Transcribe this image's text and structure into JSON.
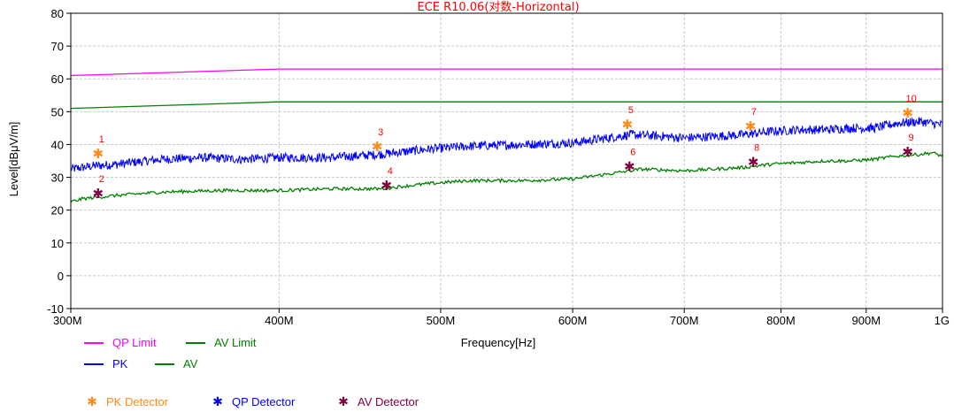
{
  "chart_data": {
    "type": "line",
    "title": "ECE R10.06(对数-Horizontal)",
    "xlabel": "Frequency[Hz]",
    "ylabel": "Level[dBμV/m]",
    "x_scale": "log",
    "xlim": [
      300000000,
      1000000000
    ],
    "ylim": [
      -10,
      80
    ],
    "grid": true,
    "x_ticks": [
      {
        "value": 300000000,
        "label": "300M"
      },
      {
        "value": 400000000,
        "label": "400M"
      },
      {
        "value": 500000000,
        "label": "500M"
      },
      {
        "value": 600000000,
        "label": "600M"
      },
      {
        "value": 700000000,
        "label": "700M"
      },
      {
        "value": 800000000,
        "label": "800M"
      },
      {
        "value": 900000000,
        "label": "900M"
      },
      {
        "value": 1000000000,
        "label": "1G"
      }
    ],
    "y_ticks": [
      -10,
      0,
      10,
      20,
      30,
      40,
      50,
      60,
      70,
      80
    ],
    "series": [
      {
        "name": "QP Limit",
        "color": "#ff00ff",
        "style": "line",
        "x": [
          300000000,
          400000000,
          1000000000
        ],
        "y": [
          61,
          63,
          63
        ]
      },
      {
        "name": "AV Limit",
        "color": "#008000",
        "style": "line",
        "x": [
          300000000,
          400000000,
          1000000000
        ],
        "y": [
          51,
          53,
          53
        ]
      },
      {
        "name": "PK",
        "color": "#0000ff",
        "style": "line",
        "x": [
          300000000,
          310000000,
          320000000,
          340000000,
          360000000,
          380000000,
          400000000,
          430000000,
          460000000,
          490000000,
          520000000,
          560000000,
          600000000,
          630000000,
          650000000,
          680000000,
          700000000,
          730000000,
          760000000,
          790000000,
          820000000,
          850000000,
          880000000,
          910000000,
          940000000,
          970000000,
          1000000000
        ],
        "y": [
          32.5,
          33.5,
          34,
          35.5,
          36,
          35.5,
          36,
          36,
          37,
          38.5,
          39.5,
          40,
          40.5,
          42,
          43,
          42.5,
          42,
          42.5,
          43,
          44,
          44.5,
          44.5,
          45,
          45,
          46.5,
          47,
          46
        ]
      },
      {
        "name": "AV",
        "color": "#008000",
        "style": "line",
        "x": [
          300000000,
          305000000,
          320000000,
          340000000,
          370000000,
          400000000,
          430000000,
          460000000,
          490000000,
          520000000,
          560000000,
          600000000,
          630000000,
          660000000,
          700000000,
          730000000,
          760000000,
          790000000,
          820000000,
          850000000,
          880000000,
          910000000,
          940000000,
          970000000,
          985000000,
          1000000000
        ],
        "y": [
          22.5,
          23.5,
          24.5,
          25.5,
          26,
          26,
          26.5,
          26.5,
          28,
          29,
          29,
          29.5,
          31,
          32.5,
          32,
          32.5,
          33,
          34,
          34.5,
          35,
          35,
          35.5,
          36.5,
          37,
          37.5,
          36.5
        ]
      }
    ],
    "markers": [
      {
        "id": "1",
        "x": 311500000,
        "y": 37.2,
        "detector": "PK Detector"
      },
      {
        "id": "2",
        "x": 311500000,
        "y": 25.0,
        "detector": "AV Detector"
      },
      {
        "id": "3",
        "x": 458000000,
        "y": 39.3,
        "detector": "PK Detector"
      },
      {
        "id": "4",
        "x": 464000000,
        "y": 27.4,
        "detector": "AV Detector"
      },
      {
        "id": "5",
        "x": 647000000,
        "y": 46.1,
        "detector": "PK Detector"
      },
      {
        "id": "6",
        "x": 649000000,
        "y": 33.3,
        "detector": "AV Detector"
      },
      {
        "id": "7",
        "x": 767000000,
        "y": 45.5,
        "detector": "PK Detector"
      },
      {
        "id": "8",
        "x": 770000000,
        "y": 34.6,
        "detector": "AV Detector"
      },
      {
        "id": "9",
        "x": 953000000,
        "y": 37.7,
        "detector": "AV Detector"
      },
      {
        "id": "10",
        "x": 953000000,
        "y": 49.5,
        "detector": "PK Detector"
      }
    ],
    "legend": {
      "lines": [
        {
          "label": "QP Limit",
          "color": "#ff00ff"
        },
        {
          "label": "AV Limit",
          "color": "#008000"
        },
        {
          "label": "PK",
          "color": "#0000ff"
        },
        {
          "label": "AV",
          "color": "#008000"
        }
      ],
      "detectors": [
        {
          "label": "PK Detector",
          "color": "#ff8c1a",
          "text_color": "#ff8c1a"
        },
        {
          "label": "QP Detector",
          "color": "#0000ff",
          "text_color": "#0000ff"
        },
        {
          "label": "AV Detector",
          "color": "#800040",
          "text_color": "#800040"
        }
      ]
    }
  }
}
